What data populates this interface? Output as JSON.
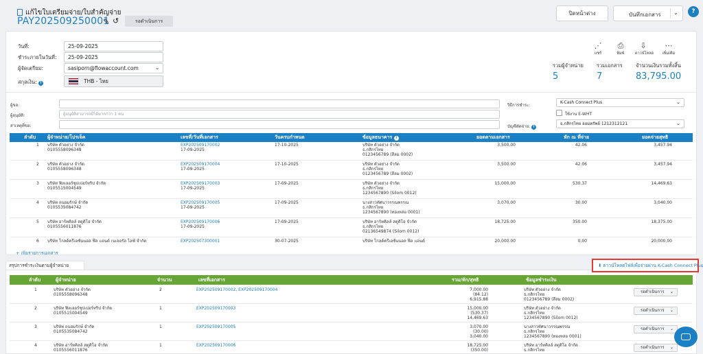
{
  "header": {
    "doc_type": "แก้ไขใบเตรียมจ่าย/ใบสำคัญจ่าย",
    "doc_no": "PAY202509250001",
    "status": "รอดำเนินการ",
    "close_label": "ปิดหน้าต่าง",
    "save_label": "บันทึกเอกสาร",
    "help": "?"
  },
  "form": {
    "date_label": "วันที่:",
    "date_value": "25-09-2025",
    "due_label": "ชำระภายในวันที่:",
    "due_value": "25-09-2025",
    "preparer_label": "ผู้จัดเตรียม:",
    "preparer_value": "sasiporn@flowaccount.com",
    "currency_label": "สกุลเงิน:",
    "currency_value": "THB - ไทย",
    "requester_label": "ผู้ขอ:",
    "approver_label": "ผู้อนุมัติ:",
    "approver_placeholder": "ผู้อนุมัติสามารถมีได้มากกว่า 1 คน",
    "reason_label": "สาเหตุที่ขอ:",
    "payment_method_label": "วิธีการชำระ:",
    "payment_method_value": "K-Cash Connect Plus",
    "ewht_label": "ใช้งาน E-WHT",
    "account_label": "บัญชีตัดจ่าย:",
    "account_value": "ธ.กสิกรไทย ออมทรัพย์ 1212312121"
  },
  "toolbar": {
    "share": "แชร์",
    "print": "พิมพ์",
    "download": "ดาวน์โหลด",
    "more": "เพิ่มเติม"
  },
  "kpis": {
    "vendors_label": "รวมผู้จำหน่าย",
    "vendors_value": "5",
    "docs_label": "รวมเอกสาร",
    "docs_value": "7",
    "total_label": "จำนวนเงินรวมทั้งสิ้น",
    "total_value": "83,795.00"
  },
  "items_table": {
    "headers": [
      "ลำดับ",
      "ผู้จำหน่าย/โปรเจ็ค",
      "เลขที่/วันที่เอกสาร",
      "วันครบกำหนด",
      "ข้อมูลธนาคาร",
      "ยอดตามเอกสาร",
      "หัก ณ ที่จ่าย",
      "ยอดจ่ายสุทธิ"
    ],
    "rows": [
      {
        "no": "1",
        "vendor": "บริษัท ตัวอย่าง จำกัด",
        "taxid": "0105558096348",
        "doc": "EXP202509170002",
        "docdate": "17-09-2025",
        "due": "17-10-2025",
        "bank1": "บริษัท ตัวอย่าง จำกัด",
        "bank2": "ธ.กสิกรไทย",
        "bank3": "0123456789 (สีลม 0002)",
        "amount": "3,500.00",
        "wht": "42.06",
        "net": "3,457.94"
      },
      {
        "no": "2",
        "vendor": "บริษัท ตัวอย่าง จำกัด",
        "taxid": "0105558096348",
        "doc": "EXP202509170004",
        "docdate": "17-09-2025",
        "due": "17-10-2025",
        "bank1": "บริษัท ตัวอย่าง จำกัด",
        "bank2": "ธ.กสิกรไทย",
        "bank3": "0123456789 (สีลม 0002)",
        "amount": "3,500.00",
        "wht": "42.06",
        "net": "3,457.94"
      },
      {
        "no": "3",
        "vendor": "บริษัท ฟิลเลอร์ซุปเปอร์ทริป จำกัด",
        "taxid": "0105515004549",
        "doc": "EXP202509170003",
        "docdate": "17-09-2025",
        "due": "17-09-2025",
        "bank1": "บริษัท ตัวอย่าง จำกัด",
        "bank2": "ธ.กสิกรไทย",
        "bank3": "1234567890 (Silom 0012)",
        "amount": "15,000.00",
        "wht": "530.37",
        "net": "14,469.63"
      },
      {
        "no": "4",
        "vendor": "บริษัท ถนอมรักษ์ จำกัด",
        "taxid": "0105535084742",
        "doc": "EXP202509170005",
        "docdate": "17-09-2025",
        "due": "17-09-2025",
        "bank1": "นางสาวทัศนาวรรณพรรณ",
        "bank2": "ธ.กสิกรไทย",
        "bank3": "1234567890 (ทองหล่อ 0001)",
        "amount": "3,070.00",
        "wht": "30.00",
        "net": "3,040.00"
      },
      {
        "no": "5",
        "vendor": "บริษัท อาร์ทคิลล์ สตูดิโอ จำกัด",
        "taxid": "0105556011876",
        "doc": "EXP202509170006",
        "docdate": "17-09-2025",
        "due": "17-09-2025",
        "bank1": "บริษัท อาร์ทคิลล์ สตูดิโอ จำกัด",
        "bank2": "ธ.กสิกรไทย",
        "bank3": "02136549874 (Silom 0012)",
        "amount": "18,725.00",
        "wht": "350.00",
        "net": "18,375.00"
      },
      {
        "no": "6",
        "vendor": "บริษัท โกลด์ครีเอชั่นนอล ฟีล แอนด์ เนเจอรัล ไลฟ์ จำกัด",
        "taxid": "",
        "doc": "EXP202507300001",
        "docdate": "",
        "due": "30-07-2025",
        "bank1": "บริษัท โกลด์ครีเอชั่นนอล ฟีล แอนด์",
        "bank2": "",
        "bank3": "",
        "amount": "20,000.00",
        "wht": "0.00",
        "net": "20,000.00"
      }
    ],
    "add_line": "+ เพิ่มรายการเอกสาร"
  },
  "summary": {
    "tab_label": "สรุปการชำระเงินตามผู้จำหน่าย",
    "download_label": "ดาวน์โหลดไฟล์เพื่อจ่ายผ่าน K-Cash Connect Plus",
    "headers": [
      "ลำดับ",
      "ผู้จำหน่าย",
      "จำนวน",
      "เลขที่เอกสาร",
      "รวม/หัก/สุทธิ",
      "ข้อมูลชำระเงิน"
    ],
    "rows": [
      {
        "no": "1",
        "vendor": "บริษัท ตัวอย่าง จำกัด",
        "taxid": "0105558096348",
        "count": "2",
        "docs": "EXP202509170002, EXP202509170004",
        "a1": "7,000.00",
        "a2": "(84.12)",
        "a3": "6,915.88",
        "p1": "บริษัท ตัวอย่าง จำกัด",
        "p2": "ธ.กสิกรไทย",
        "p3": "0123456789 (สีลม 0002)",
        "status": "รอดำเนินการ"
      },
      {
        "no": "2",
        "vendor": "บริษัท ฟิลเลอร์ซุปเปอร์ทริป จำกัด",
        "taxid": "0105515004549",
        "count": "1",
        "docs": "EXP202509170003",
        "a1": "15,000.00",
        "a2": "(530.37)",
        "a3": "14,469.63",
        "p1": "บริษัท ตัวอย่าง จำกัด",
        "p2": "ธ.กสิกรไทย",
        "p3": "1234567890 (Silom 0012)",
        "status": "รอดำเนินการ"
      },
      {
        "no": "3",
        "vendor": "บริษัท ถนอมรักษ์ จำกัด",
        "taxid": "0105535084742",
        "count": "1",
        "docs": "EXP202509170005",
        "a1": "3,070.00",
        "a2": "(30.00)",
        "a3": "3,040.00",
        "p1": "นางสาวทัศนาวรรณพรรณ",
        "p2": "ธ.กสิกรไทย",
        "p3": "1234567890 (ทองหล่อ 0001)",
        "status": "รอดำเนินการ"
      },
      {
        "no": "4",
        "vendor": "บริษัท อาร์ทคิลล์ สตูดิโอ จำกัด",
        "taxid": "0105556011876",
        "count": "1",
        "docs": "EXP202509170006",
        "a1": "18,725.00",
        "a2": "(350.00)",
        "a3": "",
        "p1": "บริษัท อาร์ทคิลล์ สตูดิโอ จำกัด",
        "p2": "ธ.กสิกรไทย",
        "p3": "",
        "status": "รอดำเนินการ"
      }
    ]
  },
  "colors": {
    "primary": "#1b7fc4",
    "green_header": "#67a534",
    "highlight": "#e53935"
  }
}
